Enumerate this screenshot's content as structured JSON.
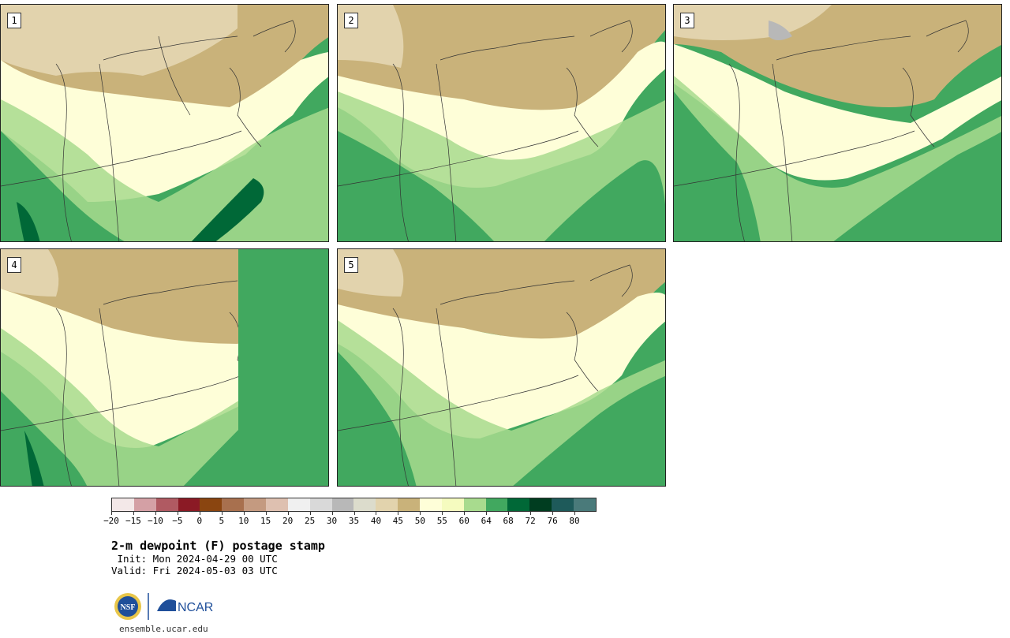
{
  "panels": [
    {
      "label": "1"
    },
    {
      "label": "2"
    },
    {
      "label": "3"
    },
    {
      "label": "4"
    },
    {
      "label": "5"
    }
  ],
  "colorbar": {
    "colors": [
      "#f3e8e8",
      "#d4a0a5",
      "#b05a62",
      "#8b1a25",
      "#8a4510",
      "#a8704e",
      "#c49a80",
      "#dec0b0",
      "#f0f0f0",
      "#d9d9d9",
      "#b8b8b8",
      "#dcdccc",
      "#e2d3ad",
      "#c9b27a",
      "#fefed8",
      "#f5fbbf",
      "#a8db8e",
      "#41a85f",
      "#006837",
      "#003d20",
      "#1e5a5a",
      "#4a7a7a"
    ],
    "ticks": [
      "−20",
      "−15",
      "−10",
      "−5",
      "0",
      "5",
      "10",
      "15",
      "20",
      "25",
      "30",
      "35",
      "40",
      "45",
      "50",
      "55",
      "60",
      "64",
      "68",
      "72",
      "76",
      "80"
    ]
  },
  "title": "2-m dewpoint (F) postage stamp",
  "init": " Init: Mon 2024-04-29 00 UTC",
  "valid": "Valid: Fri 2024-05-03 03 UTC",
  "logos": {
    "nsf": "NSF",
    "ncar": "NCAR"
  },
  "url": "ensemble.ucar.edu"
}
